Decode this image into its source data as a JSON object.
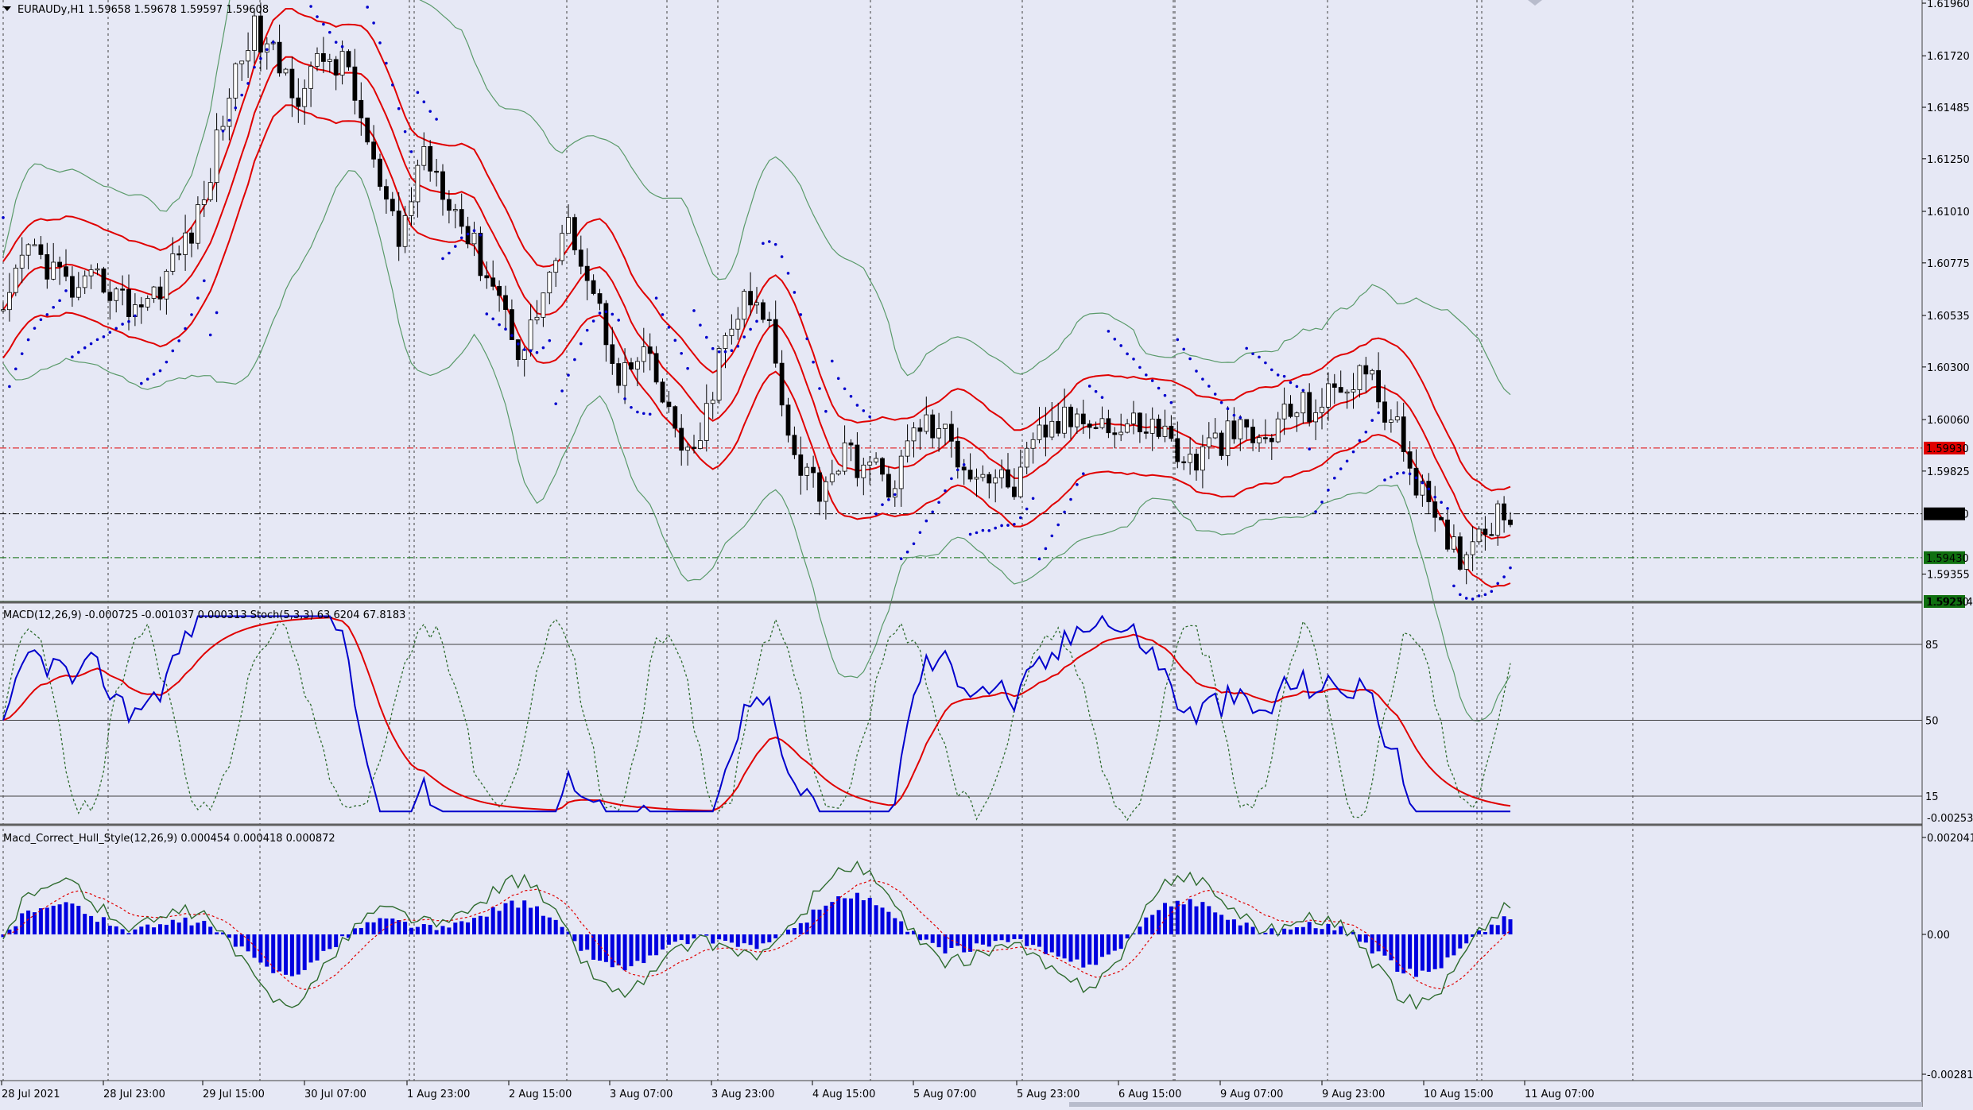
{
  "window": {
    "symbol_header": "EURAUDy,H1  1.59658 1.59678 1.59597 1.59608",
    "menu_icon": "triangle-down-icon"
  },
  "price_panel": {
    "y_ticks": [
      "1.61960",
      "1.61720",
      "1.61485",
      "1.61250",
      "1.61010",
      "1.60775",
      "1.60535",
      "1.60300",
      "1.60060",
      "1.59825",
      "1.59355"
    ],
    "y_range": [
      1.5923,
      1.6196
    ],
    "levels": [
      {
        "value": 1.5993,
        "label": "1.59930",
        "color": "#e00000",
        "style": "dashdot"
      },
      {
        "value": 1.5963,
        "label": "1.59630",
        "color": "#000000",
        "style": "dashdot"
      },
      {
        "value": 1.5943,
        "label": "1.59430",
        "color": "#107010",
        "style": "dashdot"
      },
      {
        "value": 1.5923,
        "label": "1.59230",
        "color": "#107010",
        "style": "solid"
      }
    ],
    "overlap_tick": "1.5925.45"
  },
  "macd_panel": {
    "header": "MACD(12,26,9) -0.000725 -0.001037 0.000313  Stoch(5,3,3) 63.6204 67.8183",
    "levels": [
      "85",
      "50",
      "15"
    ],
    "bottom_tick": "-0.00253"
  },
  "hull_panel": {
    "header": "Macd_Correct_Hull_Style(12,26,9) 0.000454 0.000418 0.000872",
    "y_ticks": [
      "0.002041",
      "0.00",
      "-0.00281"
    ]
  },
  "time_axis": [
    "28 Jul 2021",
    "28 Jul 23:00",
    "29 Jul 15:00",
    "30 Jul 07:00",
    "1 Aug 23:00",
    "2 Aug 15:00",
    "3 Aug 07:00",
    "3 Aug 23:00",
    "4 Aug 15:00",
    "5 Aug 07:00",
    "5 Aug 23:00",
    "6 Aug 15:00",
    "9 Aug 07:00",
    "9 Aug 23:00",
    "10 Aug 15:00",
    "11 Aug 07:00"
  ],
  "colors": {
    "background": "#e6e8f5",
    "candle_up": "#ffffff",
    "candle_down": "#000000",
    "ma": "#e00000",
    "bollinger": "#5a9a6a",
    "sar": "#0000cc",
    "macd_main": "#0000cc",
    "macd_signal": "#e00000",
    "stoch": "#2e6b2e",
    "hist": "#0000e0"
  },
  "chart_data": {
    "type": "candlestick",
    "symbol": "EURAUDy",
    "timeframe": "H1",
    "price_path": [
      1.605,
      1.6085,
      1.6075,
      1.6062,
      1.607,
      1.6058,
      1.6062,
      1.608,
      1.61,
      1.615,
      1.6185,
      1.617,
      1.6155,
      1.6172,
      1.6165,
      1.612,
      1.6085,
      1.613,
      1.611,
      1.6085,
      1.6065,
      1.6035,
      1.607,
      1.6095,
      1.606,
      1.6025,
      1.6035,
      1.6005,
      1.5985,
      1.6035,
      1.606,
      1.605,
      1.599,
      1.5975,
      1.599,
      1.5985,
      1.5975,
      1.6005,
      1.6,
      1.5985,
      1.598,
      1.5975,
      1.6,
      1.6005,
      1.601,
      1.6,
      1.6005,
      1.6,
      1.5985,
      1.5995,
      1.6,
      1.5995,
      1.601,
      1.6012,
      1.6018,
      1.603,
      1.601,
      1.5985,
      1.5955,
      1.5945,
      1.596,
      1.5965
    ],
    "stoch_levels": [
      85,
      50,
      15
    ]
  }
}
